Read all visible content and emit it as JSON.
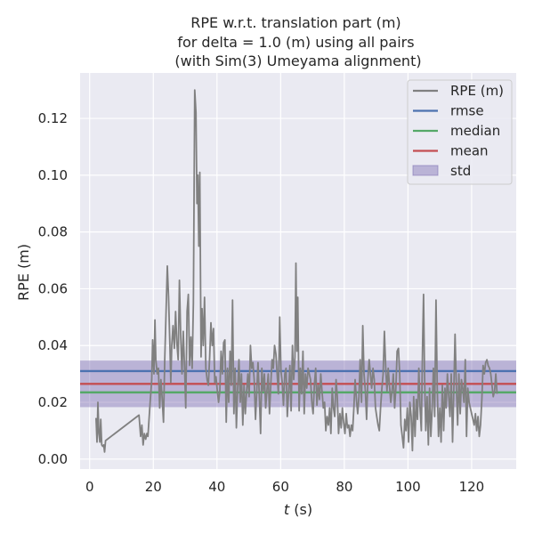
{
  "chart_data": {
    "type": "line",
    "title_lines": [
      "RPE w.r.t. translation part (m)",
      "for delta = 1.0 (m) using all pairs",
      "(with Sim(3) Umeyama alignment)"
    ],
    "xlabel_var": "t",
    "xlabel_unit": " (s)",
    "ylabel": "RPE (m)",
    "xlim": [
      -3,
      134
    ],
    "ylim": [
      -0.0035,
      0.136
    ],
    "xticks": [
      0,
      20,
      40,
      60,
      80,
      100,
      120
    ],
    "xtick_labels": [
      "0",
      "20",
      "40",
      "60",
      "80",
      "100",
      "120"
    ],
    "yticks": [
      0.0,
      0.02,
      0.04,
      0.06,
      0.08,
      0.1,
      0.12
    ],
    "ytick_labels": [
      "0.00",
      "0.02",
      "0.04",
      "0.06",
      "0.08",
      "0.10",
      "0.12"
    ],
    "grid": true,
    "legend_position": "top-right",
    "series": [
      {
        "name": "RPE (m)",
        "color": "#808080",
        "points": [
          [
            2.0,
            0.0145
          ],
          [
            2.3,
            0.006
          ],
          [
            2.6,
            0.02
          ],
          [
            2.9,
            0.009
          ],
          [
            3.2,
            0.006
          ],
          [
            3.5,
            0.014
          ],
          [
            3.8,
            0.005
          ],
          [
            4.1,
            0.0045
          ],
          [
            4.4,
            0.005
          ],
          [
            4.7,
            0.0025
          ],
          [
            5.0,
            0.0065
          ],
          [
            15.5,
            0.0155
          ],
          [
            16.0,
            0.008
          ],
          [
            16.4,
            0.012
          ],
          [
            16.8,
            0.005
          ],
          [
            17.2,
            0.009
          ],
          [
            17.6,
            0.007
          ],
          [
            18.0,
            0.009
          ],
          [
            18.3,
            0.008
          ],
          [
            19.0,
            0.02
          ],
          [
            19.5,
            0.028
          ],
          [
            19.8,
            0.042
          ],
          [
            20.2,
            0.03
          ],
          [
            20.5,
            0.049
          ],
          [
            20.8,
            0.035
          ],
          [
            21.2,
            0.03
          ],
          [
            21.6,
            0.032
          ],
          [
            22.0,
            0.018
          ],
          [
            22.4,
            0.028
          ],
          [
            22.8,
            0.021
          ],
          [
            23.2,
            0.013
          ],
          [
            23.6,
            0.035
          ],
          [
            24.0,
            0.052
          ],
          [
            24.4,
            0.068
          ],
          [
            24.8,
            0.057
          ],
          [
            25.2,
            0.04
          ],
          [
            25.5,
            0.027
          ],
          [
            25.8,
            0.04
          ],
          [
            26.2,
            0.047
          ],
          [
            26.6,
            0.039
          ],
          [
            27.0,
            0.052
          ],
          [
            27.4,
            0.041
          ],
          [
            27.8,
            0.035
          ],
          [
            28.2,
            0.063
          ],
          [
            28.6,
            0.044
          ],
          [
            29.0,
            0.03
          ],
          [
            29.4,
            0.045
          ],
          [
            29.8,
            0.033
          ],
          [
            30.2,
            0.018
          ],
          [
            30.6,
            0.052
          ],
          [
            31.0,
            0.058
          ],
          [
            31.4,
            0.033
          ],
          [
            31.8,
            0.043
          ],
          [
            32.2,
            0.032
          ],
          [
            32.6,
            0.055
          ],
          [
            33.0,
            0.13
          ],
          [
            33.4,
            0.122
          ],
          [
            33.7,
            0.09
          ],
          [
            34.0,
            0.1
          ],
          [
            34.3,
            0.075
          ],
          [
            34.6,
            0.101
          ],
          [
            35.0,
            0.036
          ],
          [
            35.3,
            0.053
          ],
          [
            35.7,
            0.04
          ],
          [
            36.1,
            0.057
          ],
          [
            36.5,
            0.032
          ],
          [
            36.9,
            0.028
          ],
          [
            37.3,
            0.026
          ],
          [
            37.7,
            0.036
          ],
          [
            38.1,
            0.048
          ],
          [
            38.5,
            0.04
          ],
          [
            38.9,
            0.046
          ],
          [
            39.3,
            0.027
          ],
          [
            39.7,
            0.029
          ],
          [
            40.1,
            0.024
          ],
          [
            40.5,
            0.02
          ],
          [
            40.9,
            0.024
          ],
          [
            41.3,
            0.038
          ],
          [
            41.7,
            0.03
          ],
          [
            42.1,
            0.041
          ],
          [
            42.5,
            0.042
          ],
          [
            42.9,
            0.013
          ],
          [
            43.3,
            0.032
          ],
          [
            43.7,
            0.02
          ],
          [
            44.1,
            0.038
          ],
          [
            44.5,
            0.026
          ],
          [
            44.9,
            0.056
          ],
          [
            45.3,
            0.016
          ],
          [
            45.7,
            0.032
          ],
          [
            46.1,
            0.011
          ],
          [
            46.5,
            0.025
          ],
          [
            46.9,
            0.035
          ],
          [
            47.3,
            0.02
          ],
          [
            47.7,
            0.03
          ],
          [
            48.1,
            0.012
          ],
          [
            48.5,
            0.026
          ],
          [
            48.9,
            0.016
          ],
          [
            49.3,
            0.024
          ],
          [
            49.7,
            0.03
          ],
          [
            50.1,
            0.022
          ],
          [
            50.5,
            0.04
          ],
          [
            50.9,
            0.032
          ],
          [
            51.3,
            0.034
          ],
          [
            51.7,
            0.028
          ],
          [
            52.1,
            0.014
          ],
          [
            52.5,
            0.024
          ],
          [
            52.9,
            0.034
          ],
          [
            53.3,
            0.022
          ],
          [
            53.7,
            0.009
          ],
          [
            54.1,
            0.032
          ],
          [
            54.5,
            0.024
          ],
          [
            54.9,
            0.03
          ],
          [
            55.3,
            0.018
          ],
          [
            55.7,
            0.024
          ],
          [
            56.1,
            0.03
          ],
          [
            56.5,
            0.016
          ],
          [
            56.9,
            0.026
          ],
          [
            57.3,
            0.035
          ],
          [
            57.7,
            0.032
          ],
          [
            58.1,
            0.04
          ],
          [
            58.5,
            0.037
          ],
          [
            58.9,
            0.03
          ],
          [
            59.3,
            0.023
          ],
          [
            59.7,
            0.05
          ],
          [
            60.1,
            0.031
          ],
          [
            60.5,
            0.027
          ],
          [
            60.9,
            0.019
          ],
          [
            61.3,
            0.03
          ],
          [
            61.7,
            0.032
          ],
          [
            62.1,
            0.015
          ],
          [
            62.5,
            0.024
          ],
          [
            62.9,
            0.033
          ],
          [
            63.3,
            0.017
          ],
          [
            63.7,
            0.04
          ],
          [
            64.1,
            0.028
          ],
          [
            64.5,
            0.036
          ],
          [
            64.8,
            0.069
          ],
          [
            65.1,
            0.038
          ],
          [
            65.4,
            0.057
          ],
          [
            65.8,
            0.017
          ],
          [
            66.2,
            0.032
          ],
          [
            66.6,
            0.023
          ],
          [
            67.0,
            0.038
          ],
          [
            67.4,
            0.016
          ],
          [
            67.8,
            0.03
          ],
          [
            68.2,
            0.025
          ],
          [
            68.6,
            0.032
          ],
          [
            69.0,
            0.03
          ],
          [
            69.4,
            0.028
          ],
          [
            69.8,
            0.02
          ],
          [
            70.2,
            0.016
          ],
          [
            70.6,
            0.026
          ],
          [
            71.0,
            0.032
          ],
          [
            71.4,
            0.019
          ],
          [
            71.8,
            0.026
          ],
          [
            72.2,
            0.021
          ],
          [
            72.6,
            0.03
          ],
          [
            73.0,
            0.024
          ],
          [
            73.4,
            0.018
          ],
          [
            73.8,
            0.02
          ],
          [
            74.2,
            0.01
          ],
          [
            74.6,
            0.015
          ],
          [
            75.0,
            0.012
          ],
          [
            75.4,
            0.018
          ],
          [
            75.8,
            0.009
          ],
          [
            76.2,
            0.025
          ],
          [
            76.6,
            0.018
          ],
          [
            77.0,
            0.015
          ],
          [
            77.4,
            0.028
          ],
          [
            77.8,
            0.022
          ],
          [
            78.2,
            0.009
          ],
          [
            78.6,
            0.016
          ],
          [
            79.0,
            0.011
          ],
          [
            79.4,
            0.018
          ],
          [
            79.8,
            0.013
          ],
          [
            80.2,
            0.009
          ],
          [
            80.6,
            0.016
          ],
          [
            81.0,
            0.011
          ],
          [
            81.4,
            0.012
          ],
          [
            81.8,
            0.008
          ],
          [
            82.2,
            0.012
          ],
          [
            82.6,
            0.01
          ],
          [
            83.0,
            0.018
          ],
          [
            83.4,
            0.028
          ],
          [
            83.8,
            0.021
          ],
          [
            84.2,
            0.016
          ],
          [
            84.6,
            0.022
          ],
          [
            85.0,
            0.035
          ],
          [
            85.4,
            0.02
          ],
          [
            85.8,
            0.047
          ],
          [
            86.2,
            0.03
          ],
          [
            86.6,
            0.024
          ],
          [
            87.0,
            0.014
          ],
          [
            87.4,
            0.028
          ],
          [
            87.8,
            0.035
          ],
          [
            88.2,
            0.03
          ],
          [
            88.6,
            0.025
          ],
          [
            89.0,
            0.032
          ],
          [
            89.4,
            0.028
          ],
          [
            89.8,
            0.018
          ],
          [
            90.2,
            0.015
          ],
          [
            90.6,
            0.012
          ],
          [
            91.0,
            0.01
          ],
          [
            91.4,
            0.018
          ],
          [
            91.8,
            0.025
          ],
          [
            92.2,
            0.03
          ],
          [
            92.6,
            0.045
          ],
          [
            93.0,
            0.032
          ],
          [
            93.4,
            0.024
          ],
          [
            93.8,
            0.032
          ],
          [
            94.2,
            0.026
          ],
          [
            94.6,
            0.02
          ],
          [
            95.0,
            0.024
          ],
          [
            95.4,
            0.03
          ],
          [
            95.8,
            0.018
          ],
          [
            96.2,
            0.025
          ],
          [
            96.6,
            0.038
          ],
          [
            97.0,
            0.039
          ],
          [
            97.4,
            0.03
          ],
          [
            97.8,
            0.012
          ],
          [
            98.2,
            0.008
          ],
          [
            98.6,
            0.004
          ],
          [
            99.0,
            0.014
          ],
          [
            99.4,
            0.01
          ],
          [
            99.8,
            0.018
          ],
          [
            100.2,
            0.006
          ],
          [
            100.6,
            0.02
          ],
          [
            101.0,
            0.015
          ],
          [
            101.4,
            0.003
          ],
          [
            101.8,
            0.022
          ],
          [
            102.2,
            0.008
          ],
          [
            102.6,
            0.021
          ],
          [
            103.0,
            0.014
          ],
          [
            103.4,
            0.032
          ],
          [
            103.8,
            0.018
          ],
          [
            104.2,
            0.01
          ],
          [
            104.6,
            0.04
          ],
          [
            104.9,
            0.058
          ],
          [
            105.2,
            0.03
          ],
          [
            105.6,
            0.01
          ],
          [
            106.0,
            0.022
          ],
          [
            106.4,
            0.005
          ],
          [
            106.8,
            0.025
          ],
          [
            107.2,
            0.008
          ],
          [
            107.6,
            0.018
          ],
          [
            108.0,
            0.032
          ],
          [
            108.4,
            0.015
          ],
          [
            108.8,
            0.056
          ],
          [
            109.2,
            0.025
          ],
          [
            109.6,
            0.008
          ],
          [
            110.0,
            0.018
          ],
          [
            110.4,
            0.006
          ],
          [
            110.8,
            0.026
          ],
          [
            111.2,
            0.01
          ],
          [
            111.6,
            0.025
          ],
          [
            112.0,
            0.018
          ],
          [
            112.4,
            0.03
          ],
          [
            112.8,
            0.022
          ],
          [
            113.2,
            0.015
          ],
          [
            113.6,
            0.03
          ],
          [
            114.0,
            0.006
          ],
          [
            114.4,
            0.024
          ],
          [
            114.8,
            0.044
          ],
          [
            115.2,
            0.025
          ],
          [
            115.6,
            0.012
          ],
          [
            116.0,
            0.03
          ],
          [
            116.4,
            0.016
          ],
          [
            116.8,
            0.028
          ],
          [
            117.2,
            0.025
          ],
          [
            117.6,
            0.02
          ],
          [
            118.0,
            0.035
          ],
          [
            118.4,
            0.008
          ],
          [
            118.8,
            0.025
          ],
          [
            119.2,
            0.02
          ],
          [
            119.6,
            0.018
          ],
          [
            120.0,
            0.016
          ],
          [
            120.4,
            0.014
          ],
          [
            120.8,
            0.012
          ],
          [
            121.2,
            0.016
          ],
          [
            121.6,
            0.01
          ],
          [
            122.0,
            0.015
          ],
          [
            122.4,
            0.008
          ],
          [
            122.8,
            0.012
          ],
          [
            123.2,
            0.021
          ],
          [
            123.6,
            0.033
          ],
          [
            124.0,
            0.03
          ],
          [
            124.4,
            0.034
          ],
          [
            124.8,
            0.035
          ],
          [
            125.2,
            0.033
          ],
          [
            125.6,
            0.032
          ],
          [
            126.0,
            0.03
          ],
          [
            126.4,
            0.026
          ],
          [
            126.8,
            0.022
          ],
          [
            127.2,
            0.024
          ],
          [
            127.6,
            0.03
          ],
          [
            128.0,
            0.023
          ]
        ]
      }
    ],
    "reference_lines": [
      {
        "name": "rmse",
        "value": 0.031,
        "color": "#4c72b0"
      },
      {
        "name": "median",
        "value": 0.0235,
        "color": "#55a868"
      },
      {
        "name": "mean",
        "value": 0.0265,
        "color": "#c44e52"
      }
    ],
    "std_band": {
      "name": "std",
      "low": 0.0183,
      "high": 0.0347,
      "color": "#8172b3"
    },
    "legend_entries": [
      "RPE (m)",
      "rmse",
      "median",
      "mean",
      "std"
    ]
  }
}
